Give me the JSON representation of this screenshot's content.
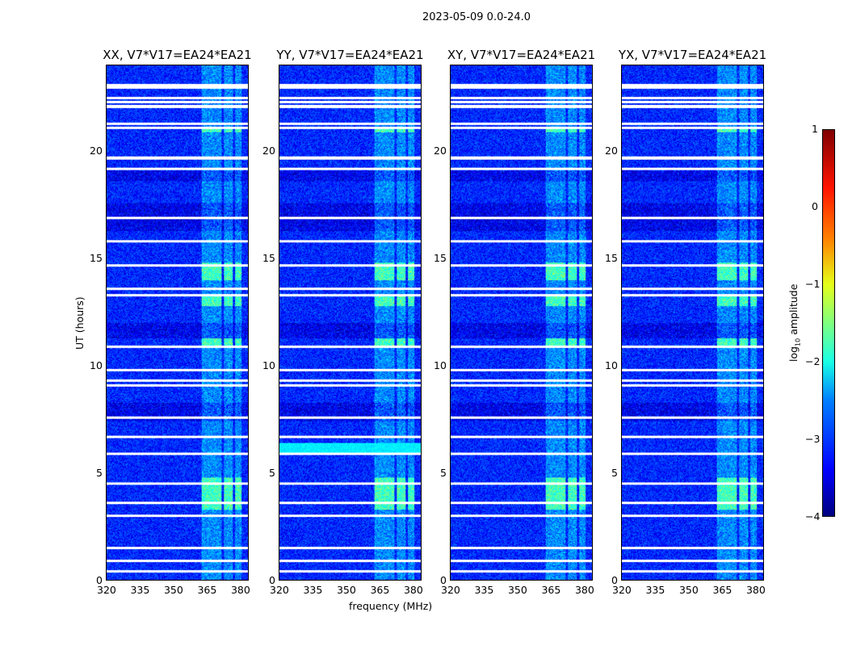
{
  "chart_data": {
    "type": "heatmap",
    "title": "2023-05-09 0.0-24.0",
    "xlabel": "frequency (MHz)",
    "ylabel": "UT (hours)",
    "xlim": [
      320,
      384
    ],
    "ylim": [
      0,
      24
    ],
    "xticks": [
      "320",
      "335",
      "350",
      "365",
      "380"
    ],
    "yticks": [
      "0",
      "5",
      "10",
      "15",
      "20"
    ],
    "panels": [
      {
        "title": "XX, V7*V17=EA24*EA21"
      },
      {
        "title": "YY, V7*V17=EA24*EA21"
      },
      {
        "title": "XY, V7*V17=EA24*EA21"
      },
      {
        "title": "YX, V7*V17=EA24*EA21"
      }
    ],
    "flagged_hours": [
      23.1,
      23.0,
      22.5,
      22.3,
      22.1,
      21.3,
      21.1,
      19.7,
      19.2,
      16.9,
      15.8,
      14.7,
      13.6,
      13.3,
      10.9,
      9.8,
      9.3,
      9.1,
      7.6,
      6.7,
      5.9,
      4.5,
      3.6,
      3.0,
      1.5,
      0.9,
      0.4
    ],
    "rfi_channels_mhz": [
      [
        363,
        368
      ],
      [
        368,
        372
      ],
      [
        373,
        377
      ],
      [
        378,
        381
      ]
    ],
    "bright_hour_ranges": [
      [
        14.0,
        14.8
      ],
      [
        12.8,
        13.3
      ],
      [
        10.9,
        11.3
      ],
      [
        3.3,
        4.8
      ],
      [
        20.9,
        21.1
      ]
    ],
    "background_log10_amplitude": -3.2,
    "rfi_log10_amplitude": -1.7,
    "colorbar": {
      "label": "log10 amplitude",
      "range": [
        -4,
        1
      ],
      "ticks": [
        "1",
        "0",
        "−1",
        "−2",
        "−3",
        "−4"
      ],
      "colormap": "jet"
    }
  }
}
